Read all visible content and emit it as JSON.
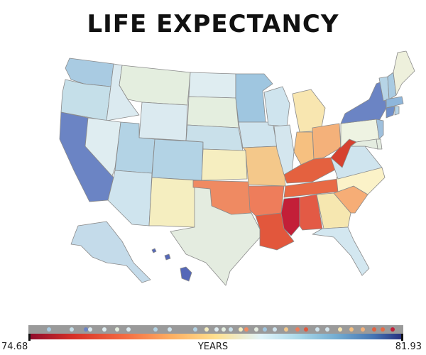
{
  "title": "LIFE EXPECTANCY",
  "legend": {
    "min_label": "74.68",
    "max_label": "81.93",
    "unit_label": "YEARS",
    "min": 74.68,
    "max": 81.93,
    "colors": [
      "#8c0a2c",
      "#d73027",
      "#f46d43",
      "#fdae61",
      "#fee090",
      "#e0f3f8",
      "#abd9e9",
      "#74add1",
      "#4575b4",
      "#262d7d"
    ]
  },
  "states": [
    {
      "name": "Washington",
      "color": "#a9cbe2"
    },
    {
      "name": "Oregon",
      "color": "#c5dfe9"
    },
    {
      "name": "California",
      "color": "#6b84c4"
    },
    {
      "name": "Idaho",
      "color": "#dbeaf0"
    },
    {
      "name": "Nevada",
      "color": "#dfedf1"
    },
    {
      "name": "Montana",
      "color": "#e4eedf"
    },
    {
      "name": "Wyoming",
      "color": "#dbeaf0"
    },
    {
      "name": "Utah",
      "color": "#b3d3e5"
    },
    {
      "name": "Arizona",
      "color": "#cfe4ee"
    },
    {
      "name": "Colorado",
      "color": "#b3d3e5"
    },
    {
      "name": "New Mexico",
      "color": "#f5eec0"
    },
    {
      "name": "North Dakota",
      "color": "#dfedf1"
    },
    {
      "name": "South Dakota",
      "color": "#e4eedf"
    },
    {
      "name": "Nebraska",
      "color": "#c9e0ea"
    },
    {
      "name": "Kansas",
      "color": "#f6eec0"
    },
    {
      "name": "Oklahoma",
      "color": "#ef8a62"
    },
    {
      "name": "Texas",
      "color": "#e4ece0"
    },
    {
      "name": "Minnesota",
      "color": "#9fc6e0"
    },
    {
      "name": "Iowa",
      "color": "#cfe4ee"
    },
    {
      "name": "Missouri",
      "color": "#f4c88a"
    },
    {
      "name": "Arkansas",
      "color": "#ee7d5b"
    },
    {
      "name": "Louisiana",
      "color": "#e2573c"
    },
    {
      "name": "Wisconsin",
      "color": "#cfe4ee"
    },
    {
      "name": "Illinois",
      "color": "#d4e6ee"
    },
    {
      "name": "Michigan",
      "color": "#f8e6b0"
    },
    {
      "name": "Indiana",
      "color": "#f6c080"
    },
    {
      "name": "Ohio",
      "color": "#f4b17a"
    },
    {
      "name": "Kentucky",
      "color": "#e4613f"
    },
    {
      "name": "Tennessee",
      "color": "#e86a45"
    },
    {
      "name": "Mississippi",
      "color": "#c31f38"
    },
    {
      "name": "Alabama",
      "color": "#e35a45"
    },
    {
      "name": "Georgia",
      "color": "#f6e7b0"
    },
    {
      "name": "Florida",
      "color": "#d3e7f0"
    },
    {
      "name": "South Carolina",
      "color": "#f6ad76"
    },
    {
      "name": "North Carolina",
      "color": "#fbf2c8"
    },
    {
      "name": "Virginia",
      "color": "#cfe4ee"
    },
    {
      "name": "West Virginia",
      "color": "#d6412f"
    },
    {
      "name": "Pennsylvania",
      "color": "#eef3e2"
    },
    {
      "name": "New York",
      "color": "#6b84c4"
    },
    {
      "name": "Vermont",
      "color": "#b6d4e6"
    },
    {
      "name": "New Hampshire",
      "color": "#a9cbe2"
    },
    {
      "name": "Maine",
      "color": "#eef0dc"
    },
    {
      "name": "Massachusetts",
      "color": "#8eb6db"
    },
    {
      "name": "Connecticut",
      "color": "#6f8fca"
    },
    {
      "name": "Rhode Island",
      "color": "#b6d4e6"
    },
    {
      "name": "New Jersey",
      "color": "#9fc0dd"
    },
    {
      "name": "Delaware",
      "color": "#e4ece0"
    },
    {
      "name": "Maryland",
      "color": "#e4ece0"
    },
    {
      "name": "Alaska",
      "color": "#c4dbea"
    },
    {
      "name": "Hawaii",
      "color": "#5568b8"
    }
  ]
}
